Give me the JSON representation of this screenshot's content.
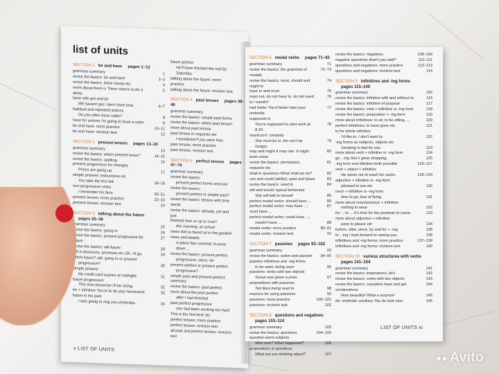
{
  "left_page": {
    "title": "list of units",
    "footer": "x   LIST OF UNITS",
    "col1": [
      {
        "num": "SECTION 1",
        "name": "be and have",
        "pages": "pages 1–12",
        "lines": [
          {
            "t": "grammar summary",
            "p": "1"
          },
          {
            "t": "revise the basics: be and have",
            "p": "2–3"
          },
          {
            "t": "revise the basics: there is/was etc",
            "p": "4"
          },
          {
            "t": "more about there is",
            "ex": "There seems to be a delay.",
            "p": "5"
          },
          {
            "t": "have with got and do",
            "p": ""
          },
          {
            "t": "",
            "ex": "We haven't got / don't have time.",
            "p": "6–7",
            "i": 1
          },
          {
            "t": "habitual and repeated actions",
            "p": ""
          },
          {
            "t": "",
            "ex": "Do you often have colds?",
            "p": "8",
            "i": 1
          },
          {
            "t": "have for actions",
            "ex": "I'm going to have a swim.",
            "p": "9"
          },
          {
            "t": "be and have: more practice",
            "p": "10–11"
          },
          {
            "t": "be and have: revision test",
            "p": "12"
          }
        ]
      },
      {
        "num": "SECTION 2",
        "name": "present tenses",
        "pages": "pages 13–24",
        "lines": [
          {
            "t": "grammar summary",
            "p": "13"
          },
          {
            "t": "revise the basics: which present tense?",
            "p": "14–15"
          },
          {
            "t": "revise the basics: spelling",
            "p": "16"
          },
          {
            "t": "present progressive for changes",
            "p": ""
          },
          {
            "t": "",
            "ex": "Prices are going up.",
            "p": "17",
            "i": 1
          },
          {
            "t": "simple present: instructions etc",
            "p": ""
          },
          {
            "t": "",
            "ex": "You take the first left.",
            "p": "18–19",
            "i": 1
          },
          {
            "t": "non-progressive verbs",
            "p": ""
          },
          {
            "t": "",
            "ex": "I remember his face.",
            "p": "20–21",
            "i": 1
          },
          {
            "t": "present tenses: more practice",
            "p": "22–23"
          },
          {
            "t": "present tenses: revision test",
            "p": "24"
          }
        ]
      },
      {
        "num": "SECTION 3",
        "name": "talking about the future",
        "pages2": "pages 25–38",
        "lines": [
          {
            "t": "grammar summary",
            "p": "25"
          },
          {
            "t": "revise the basics: going to",
            "p": "26"
          },
          {
            "t": "revise the basics: present progressive for future",
            "p": "27"
          },
          {
            "t": "revise the basics: will-future",
            "p": "28"
          },
          {
            "t": "will in decisions, promises etc",
            "ex": "OK, I'll go.",
            "p": "29"
          },
          {
            "t": "which future? will, going to or present",
            "p": ""
          },
          {
            "t": "progressive?",
            "p": "30",
            "i": 1
          },
          {
            "t": "simple present",
            "p": ""
          },
          {
            "t": "",
            "ex": "My credit card expires at midnight.",
            "p": "31",
            "i": 1
          },
          {
            "t": "future progressive",
            "p": ""
          },
          {
            "t": "",
            "ex": "This time tomorrow I'll be skiing.",
            "p": "32",
            "i": 1
          },
          {
            "t": "be + infinitive",
            "ex": "You're to do your homework.",
            "p": "33"
          },
          {
            "t": "future in the past",
            "p": ""
          },
          {
            "t": "",
            "ex": "I was going to ring you yesterday.",
            "p": "34",
            "i": 1
          }
        ]
      }
    ],
    "col2": [
      {
        "lines": [
          {
            "t": "future perfect",
            "p": ""
          },
          {
            "t": "",
            "ex": "He'll have finished the roof by Saturday.",
            "p": "",
            "i": 1
          },
          {
            "t": "talking about the future: more practice",
            "p": ""
          },
          {
            "t": "talking about the future: revision test",
            "p": ""
          }
        ]
      },
      {
        "num": "SECTION 4",
        "name": "past tenses",
        "pages": "pages 39–46",
        "lines": [
          {
            "t": "grammar summary",
            "p": ""
          },
          {
            "t": "revise the basics: simple past forms",
            "p": ""
          },
          {
            "t": "revise the basics: which past tense?",
            "p": ""
          },
          {
            "t": "more about past tenses",
            "p": ""
          },
          {
            "t": "past tenses in requests etc",
            "p": ""
          },
          {
            "t": "",
            "ex": "I wondered if you were free.",
            "p": "",
            "i": 1
          },
          {
            "t": "past tenses: more practice",
            "p": ""
          },
          {
            "t": "past tenses: revision test",
            "p": ""
          }
        ]
      },
      {
        "num": "SECTION 5",
        "name": "perfect tenses",
        "pages": "pages 47–70",
        "lines": [
          {
            "t": "grammar summary",
            "p": ""
          },
          {
            "t": "revise the basics:",
            "p": ""
          },
          {
            "t": "present perfect forms and use",
            "p": "",
            "i": 1
          },
          {
            "t": "revise the basics:",
            "p": ""
          },
          {
            "t": "present perfect or simple past?",
            "p": "",
            "i": 1
          },
          {
            "t": "revise the basics: tenses with time words",
            "p": ""
          },
          {
            "t": "revise the basics: already, yet and just",
            "p": ""
          },
          {
            "t": "finished time or up to now?",
            "p": ""
          },
          {
            "t": "",
            "ex": "this morning; at school",
            "p": "",
            "i": 1
          },
          {
            "t": "news",
            "ex": "We've found oil in the garden!",
            "p": ""
          },
          {
            "t": "news and details",
            "p": ""
          },
          {
            "t": "",
            "ex": "A plane has crashed. It came down ...",
            "p": "",
            "i": 1
          },
          {
            "t": "revise the basics: present perfect",
            "p": ""
          },
          {
            "t": "progressive; since, for",
            "p": "",
            "i": 1
          },
          {
            "t": "present perfect or present perfect",
            "p": ""
          },
          {
            "t": "progressive?",
            "p": "",
            "i": 1
          },
          {
            "t": "simple past and present perfect: summary",
            "p": ""
          },
          {
            "t": "revise the basics: past perfect",
            "p": ""
          },
          {
            "t": "more about the past perfect",
            "p": ""
          },
          {
            "t": "",
            "ex": "after I had finished",
            "p": "",
            "i": 1
          },
          {
            "t": "past perfect progressive",
            "p": ""
          },
          {
            "t": "",
            "ex": "she had been working too hard",
            "p": "",
            "i": 1
          },
          {
            "t": "This is the first time etc",
            "p": ""
          },
          {
            "t": "perfect tenses: more practice",
            "p": ""
          },
          {
            "t": "perfect tenses: revision test",
            "p": ""
          },
          {
            "t": "all past and perfect tenses: revision test",
            "p": ""
          }
        ]
      }
    ]
  },
  "right_page": {
    "footer": "LIST OF UNITS   xi",
    "col1": [
      {
        "num": "SECTION 6",
        "name": "modal verbs",
        "pages": "pages 71–92",
        "lines": [
          {
            "t": "grammar summary",
            "p": "71"
          },
          {
            "t": "revise the basics: the grammar of modals",
            "p": "72–73"
          },
          {
            "t": "revise the basics: must, should and ought to",
            "p": "74"
          },
          {
            "t": "have to and must",
            "p": "75"
          },
          {
            "t": "must not, do not have to, do not need to / needn't",
            "p": "76"
          },
          {
            "t": "had better",
            "ex": "You'd better take your umbrella.",
            "p": "77"
          },
          {
            "t": "supposed to",
            "p": ""
          },
          {
            "t": "",
            "ex": "You're supposed to start work at 8.30.",
            "p": "78",
            "i": 1
          },
          {
            "t": "must/can't: certainty",
            "p": ""
          },
          {
            "t": "",
            "ex": "She must be in. He can't be hungry.",
            "p": "79",
            "i": 1
          },
          {
            "t": "may and might",
            "ex": "It may rain. It might even snow.",
            "p": "80"
          },
          {
            "t": "revise the basics: permission, requests etc",
            "p": "81"
          },
          {
            "t": "shall in questions",
            "ex": "What shall we do?",
            "p": "82"
          },
          {
            "t": "can and could (ability): past and future",
            "p": "83"
          },
          {
            "t": "revise the basics: used to",
            "p": "84"
          },
          {
            "t": "will and would: typical behaviour",
            "p": ""
          },
          {
            "t": "",
            "ex": "She will talk to herself.",
            "p": "85",
            "i": 1
          },
          {
            "t": "perfect modal verbs: should have ...",
            "p": "86"
          },
          {
            "t": "perfect modal verbs: may have ...; must have ...",
            "p": "87"
          },
          {
            "t": "perfect modal verbs: could have ...;",
            "p": ""
          },
          {
            "t": "needn't have ...",
            "p": "88",
            "i": 1
          },
          {
            "t": "modal verbs: more practice",
            "p": "89–91"
          },
          {
            "t": "modal verbs: revision test",
            "p": "92"
          }
        ]
      },
      {
        "num": "SECTION 7",
        "name": "passives",
        "pages": "pages 93–102",
        "lines": [
          {
            "t": "grammar summary",
            "p": "93"
          },
          {
            "t": "revise the basics: active and passive",
            "p": "94–95"
          },
          {
            "t": "passive infinitives and -ing forms",
            "p": ""
          },
          {
            "t": "",
            "ex": "to be seen; being seen",
            "p": "96",
            "i": 1
          },
          {
            "t": "passives: verbs with two objects",
            "p": ""
          },
          {
            "t": "",
            "ex": "Susan was given a prize.",
            "p": "97",
            "i": 1
          },
          {
            "t": "prepositions with passives",
            "p": ""
          },
          {
            "t": "",
            "ex": "Ted likes being read to.",
            "p": "98",
            "i": 1
          },
          {
            "t": "reasons for using passives",
            "p": "99"
          },
          {
            "t": "passives: more practice",
            "p": "100–101"
          },
          {
            "t": "passives: revision test",
            "p": "102"
          }
        ]
      },
      {
        "num": "SECTION 8",
        "name": "questions and negatives",
        "pages2": "pages 103–114",
        "lines": [
          {
            "t": "grammar summary",
            "p": "103"
          },
          {
            "t": "revise the basics: questions",
            "p": "104–105"
          },
          {
            "t": "question-word subjects",
            "p": ""
          },
          {
            "t": "",
            "ex": "Who won?   What happened?",
            "p": "106",
            "i": 1
          },
          {
            "t": "prepositions in questions",
            "p": ""
          },
          {
            "t": "",
            "ex": "What are you thinking about?",
            "p": "107",
            "i": 1
          }
        ]
      }
    ],
    "col2": [
      {
        "lines": [
          {
            "t": "revise the basics: negatives",
            "p": "108–109"
          },
          {
            "t": "negative questions",
            "ex": "Aren't you well?",
            "p": "110–111"
          },
          {
            "t": "questions and negatives: more practice",
            "p": "112–113"
          },
          {
            "t": "questions and negatives: revision test",
            "p": "114"
          }
        ]
      },
      {
        "num": "SECTION 9",
        "name": "infinitives and -ing forms",
        "pages2": "pages 115–140",
        "lines": [
          {
            "t": "grammar summary",
            "p": "115"
          },
          {
            "t": "revise the basics: infinitive with and without to",
            "p": "116"
          },
          {
            "t": "revise the basics: infinitive of purpose",
            "p": "117"
          },
          {
            "t": "revise the basics: verb + infinitive or -ing form",
            "p": "118"
          },
          {
            "t": "revise the basics: preposition + -ing form",
            "p": "119"
          },
          {
            "t": "more about infinitives: to sit, to be sitting, ...",
            "p": "120"
          },
          {
            "t": "perfect infinitives: to have gone etc",
            "p": "121"
          },
          {
            "t": "to for whole infinitive",
            "p": ""
          },
          {
            "t": "",
            "ex": "I'd like to.   I don't want to.",
            "p": "122",
            "i": 1
          },
          {
            "t": "-ing forms as subjects, objects etc",
            "p": ""
          },
          {
            "t": "",
            "ex": "Smoking is bad for you",
            "p": "123",
            "i": 1
          },
          {
            "t": "more about verb + infinitive or -ing form",
            "p": "124"
          },
          {
            "t": "go ...ing",
            "ex": "She's gone shopping.",
            "p": "125"
          },
          {
            "t": "-ing form and infinitive both possible",
            "p": "126–127"
          },
          {
            "t": "verb + object + infinitive",
            "p": ""
          },
          {
            "t": "",
            "ex": "He wants me to wash his socks.",
            "p": "128–129",
            "i": 1
          },
          {
            "t": "adjective + infinitive or -ing form",
            "p": ""
          },
          {
            "t": "",
            "ex": "pleased to see etc",
            "p": "130",
            "i": 1
          },
          {
            "t": "noun + infinitive or -ing form",
            "p": ""
          },
          {
            "t": "",
            "ex": "time to go; fear of flying",
            "p": "131",
            "i": 1
          },
          {
            "t": "more about noun/pronoun + infinitive",
            "p": ""
          },
          {
            "t": "",
            "ex": "nothing to wear",
            "p": "132",
            "i": 1
          },
          {
            "t": "for ... to ...",
            "ex": "It's time for the postman to come.",
            "p": "133"
          },
          {
            "t": "more about adjective + infinitive",
            "p": ""
          },
          {
            "t": "",
            "ex": "easy to please etc",
            "p": "134",
            "i": 1
          },
          {
            "t": "before, after, since, by and for + -ing",
            "p": "135"
          },
          {
            "t": "to ...ing",
            "ex": "I look forward to seeing you.",
            "p": "136"
          },
          {
            "t": "infinitives and -ing forms: more practice",
            "p": "137–139"
          },
          {
            "t": "infinitives and -ing forms: revision test",
            "p": "140"
          }
        ]
      },
      {
        "num": "SECTION 10",
        "name": "various structures with verbs",
        "pages2": "pages 141–154",
        "lines": [
          {
            "t": "grammar summary",
            "p": "141"
          },
          {
            "t": "revise the basics: imperatives; let's",
            "p": "142"
          },
          {
            "t": "revise the basics: verbs with two objects",
            "p": "143"
          },
          {
            "t": "revise the basics: causative have and get",
            "p": "144"
          },
          {
            "t": "exclamations",
            "p": ""
          },
          {
            "t": "",
            "ex": "How beautiful!   What a surprise!",
            "p": "145",
            "i": 1
          },
          {
            "t": "do: emphatic auxiliary",
            "ex": "You do look nice.",
            "p": "146"
          }
        ]
      }
    ]
  },
  "watermark": "Avito",
  "colors": {
    "section_number": "#e0782f",
    "text": "#2a2a35",
    "page": "#f4f4f5",
    "nail": "#d11f2a"
  }
}
